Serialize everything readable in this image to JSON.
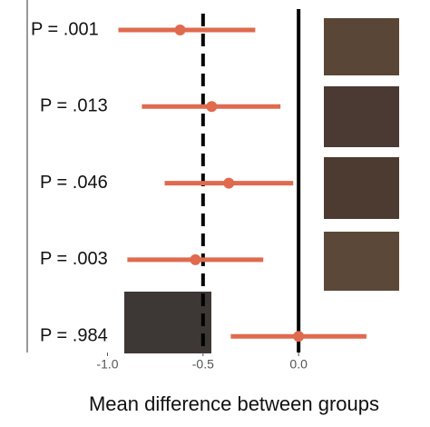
{
  "chart_data": {
    "type": "forest",
    "x_label": "Mean difference between groups",
    "categories": [
      "P = .001",
      "P = .013",
      "P = .046",
      "P = .003",
      "P = .984"
    ],
    "values": [
      -0.62,
      -0.455,
      -0.365,
      -0.54,
      0.0
    ],
    "lower": [
      -0.943,
      -0.82,
      -0.701,
      -0.896,
      -0.355
    ],
    "upper": [
      -0.227,
      -0.095,
      -0.028,
      -0.185,
      0.355
    ],
    "color": "#e06a4e",
    "xlim": [
      -1.42,
      0.5
    ],
    "xticks": [
      {
        "value": -1.0,
        "label": "-1.0"
      },
      -0.5,
      {
        "value": 0.0,
        "label": "0.0"
      }
    ],
    "reference_lines": [
      {
        "value": -0.5,
        "style": "dashed"
      },
      {
        "value": 0,
        "style": "solid"
      }
    ]
  }
}
